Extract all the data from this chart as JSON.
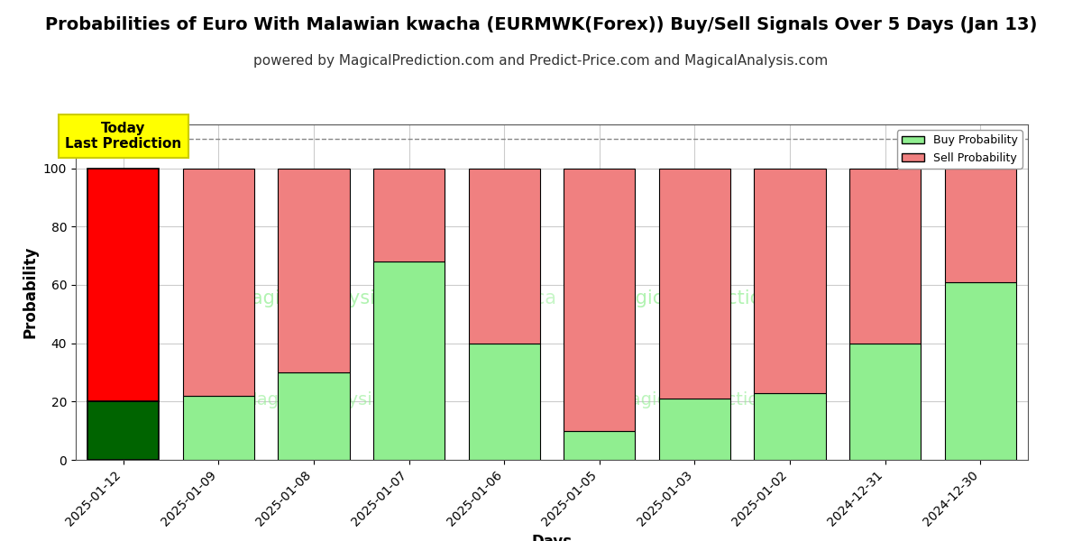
{
  "title": "Probabilities of Euro With Malawian kwacha (EURMWK(Forex)) Buy/Sell Signals Over 5 Days (Jan 13)",
  "subtitle": "powered by MagicalPrediction.com and Predict-Price.com and MagicalAnalysis.com",
  "xlabel": "Days",
  "ylabel": "Probability",
  "dates": [
    "2025-01-12",
    "2025-01-09",
    "2025-01-08",
    "2025-01-07",
    "2025-01-06",
    "2025-01-05",
    "2025-01-03",
    "2025-01-02",
    "2024-12-31",
    "2024-12-30"
  ],
  "buy_values": [
    20,
    22,
    30,
    68,
    40,
    10,
    21,
    23,
    40,
    61
  ],
  "sell_values": [
    80,
    78,
    70,
    32,
    60,
    90,
    79,
    77,
    60,
    39
  ],
  "today_buy_color": "#006400",
  "today_sell_color": "#ff0000",
  "buy_color": "#90EE90",
  "sell_color": "#F08080",
  "bar_edge_color": "#000000",
  "today_label_bg": "#ffff00",
  "today_label_text": "Today\nLast Prediction",
  "legend_buy": "Buy Probability",
  "legend_sell": "Sell Probability",
  "ylim": [
    0,
    115
  ],
  "yticks": [
    0,
    20,
    40,
    60,
    80,
    100
  ],
  "dashed_line_y": 110,
  "dashed_line_color": "#888888",
  "background_color": "#ffffff",
  "grid_color": "#cccccc",
  "title_fontsize": 14,
  "subtitle_fontsize": 11,
  "axis_label_fontsize": 12,
  "tick_fontsize": 10,
  "bar_width": 0.75
}
